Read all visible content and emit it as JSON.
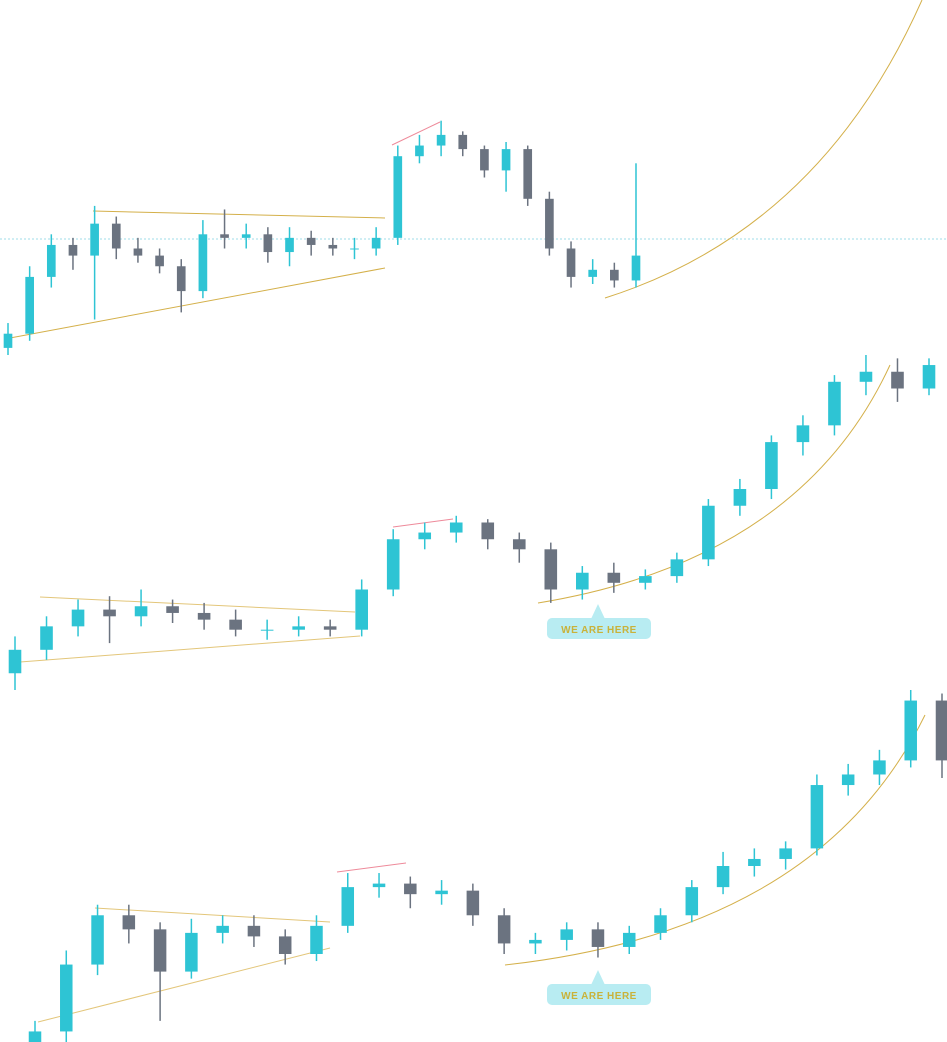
{
  "chart_data": [
    {
      "type": "candlestick",
      "up_color": "#2ec4d4",
      "down_color": "#6b7380",
      "ylim": [
        0,
        100
      ],
      "open": [
        2,
        6,
        22,
        31,
        28,
        37,
        30,
        28,
        25,
        18,
        34,
        33,
        34,
        29,
        33,
        31,
        30,
        30,
        33,
        56,
        59,
        62,
        58,
        52,
        58,
        44,
        30,
        22,
        24,
        21
      ],
      "high": [
        9,
        25,
        34,
        33,
        42,
        39,
        33,
        30,
        27,
        38,
        41,
        37,
        36,
        36,
        35,
        33,
        33,
        36,
        59,
        62,
        66,
        63,
        59,
        60,
        59,
        46,
        32,
        27,
        26,
        54
      ],
      "low": [
        0,
        4,
        19,
        24,
        10,
        27,
        26,
        23,
        12,
        16,
        30,
        30,
        26,
        25,
        28,
        28,
        27,
        28,
        31,
        54,
        56,
        56,
        50,
        46,
        42,
        28,
        19,
        20,
        19,
        19
      ],
      "close": [
        6,
        22,
        31,
        28,
        37,
        30,
        28,
        25,
        18,
        34,
        33,
        34,
        29,
        33,
        31,
        30,
        30,
        33,
        56,
        59,
        62,
        58,
        52,
        58,
        44,
        30,
        22,
        24,
        21,
        28
      ]
    },
    {
      "type": "candlestick",
      "up_color": "#2ec4d4",
      "down_color": "#6b7380",
      "ylim": [
        0,
        100
      ],
      "annotation": "WE ARE HERE",
      "open": [
        5,
        12,
        19,
        24,
        22,
        25,
        23,
        21,
        18,
        18,
        19,
        18,
        30,
        45,
        47,
        50,
        45,
        42,
        30,
        35,
        32,
        34,
        39,
        55,
        60,
        74,
        79,
        92,
        95,
        90
      ],
      "high": [
        16,
        22,
        27,
        28,
        30,
        27,
        26,
        24,
        21,
        22,
        21,
        33,
        48,
        50,
        52,
        51,
        47,
        44,
        37,
        38,
        36,
        41,
        57,
        63,
        76,
        82,
        94,
        100,
        99,
        99
      ],
      "low": [
        0,
        9,
        16,
        14,
        19,
        20,
        18,
        16,
        15,
        16,
        16,
        16,
        28,
        42,
        44,
        42,
        38,
        26,
        27,
        29,
        30,
        32,
        37,
        52,
        57,
        70,
        76,
        88,
        86,
        88
      ],
      "close": [
        12,
        19,
        24,
        22,
        25,
        23,
        21,
        18,
        18,
        19,
        18,
        30,
        45,
        47,
        50,
        45,
        42,
        30,
        35,
        32,
        34,
        39,
        55,
        60,
        74,
        79,
        92,
        95,
        90,
        97
      ]
    },
    {
      "type": "candlestick",
      "up_color": "#2ec4d4",
      "down_color": "#6b7380",
      "ylim": [
        0,
        100
      ],
      "annotation": "WE ARE HERE",
      "open": [
        0,
        3,
        22,
        36,
        32,
        20,
        31,
        33,
        30,
        25,
        33,
        44,
        45,
        42,
        43,
        36,
        28,
        29,
        32,
        27,
        31,
        36,
        44,
        50,
        52,
        55,
        73,
        76,
        80,
        97
      ],
      "high": [
        6,
        26,
        39,
        39,
        34,
        35,
        36,
        36,
        32,
        36,
        48,
        48,
        47,
        46,
        45,
        38,
        31,
        34,
        34,
        33,
        38,
        46,
        54,
        55,
        57,
        76,
        79,
        83,
        100,
        99
      ],
      "low": [
        0,
        0,
        19,
        28,
        6,
        18,
        28,
        27,
        22,
        23,
        31,
        41,
        38,
        39,
        33,
        25,
        25,
        26,
        24,
        25,
        29,
        34,
        42,
        47,
        49,
        53,
        70,
        73,
        78,
        75
      ],
      "close": [
        3,
        22,
        36,
        32,
        20,
        31,
        33,
        30,
        25,
        33,
        44,
        45,
        42,
        43,
        36,
        28,
        29,
        32,
        27,
        31,
        36,
        44,
        50,
        52,
        55,
        73,
        76,
        80,
        97,
        80
      ]
    }
  ]
}
